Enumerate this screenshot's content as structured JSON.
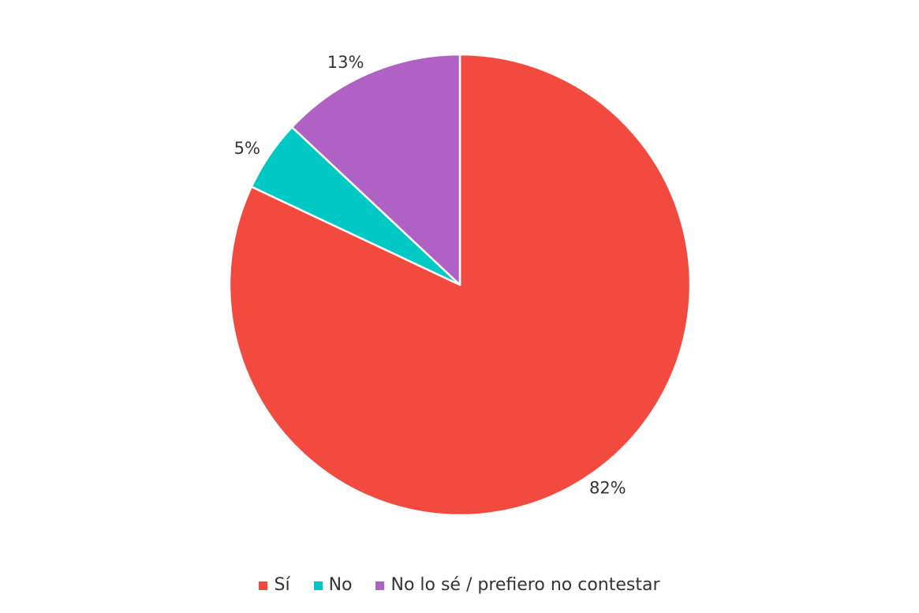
{
  "chart_data": {
    "type": "pie",
    "title": "",
    "start_angle": "12 o'clock",
    "direction": "clockwise",
    "legend_position": "bottom-center",
    "slices": [
      {
        "name": "Sí",
        "value": 82,
        "label": "82%",
        "color": "#f34a40"
      },
      {
        "name": "No",
        "value": 5,
        "label": "5%",
        "color": "#00c8c4"
      },
      {
        "name": "No lo sé / prefiero no contestar",
        "value": 13,
        "label": "13%",
        "color": "#af61c4"
      }
    ]
  }
}
